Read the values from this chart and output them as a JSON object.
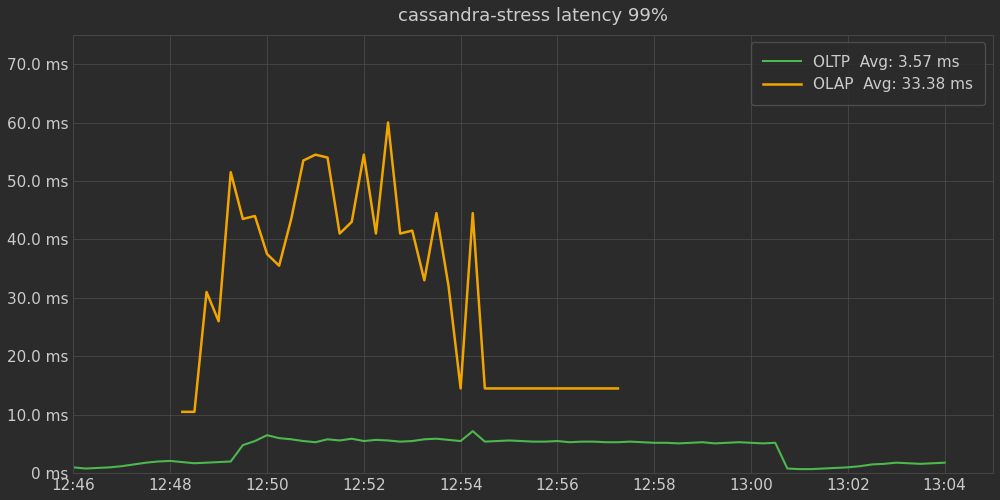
{
  "title": "cassandra-stress latency 99%",
  "background_color": "#2b2b2b",
  "plot_bg_color": "#2b2b2b",
  "grid_color": "#555555",
  "text_color": "#cccccc",
  "title_color": "#cccccc",
  "oltp_color": "#4db84d",
  "olap_color": "#f0a500",
  "oltp_label": "OLTP  Avg: 3.57 ms",
  "olap_label": "OLAP  Avg: 33.38 ms",
  "ylim": [
    0,
    75
  ],
  "yticks": [
    0,
    10.0,
    20.0,
    30.0,
    40.0,
    50.0,
    60.0,
    70.0
  ],
  "ytick_labels": [
    "0 ms",
    "10.0 ms",
    "20.0 ms",
    "30.0 ms",
    "40.0 ms",
    "50.0 ms",
    "60.0 ms",
    "70.0 ms"
  ],
  "xtick_labels": [
    "12:46",
    "12:48",
    "12:50",
    "12:52",
    "12:54",
    "12:56",
    "12:58",
    "13:00",
    "13:02",
    "13:04"
  ],
  "oltp_times_min": [
    0,
    0.5,
    1,
    1.5,
    2,
    2.5,
    3,
    3.5,
    4,
    4.5,
    5,
    5.5,
    6,
    6.5,
    7,
    7.5,
    8,
    8.5,
    9,
    9.5,
    10,
    10.5,
    11,
    11.5,
    12,
    12.5,
    13,
    13.5,
    14,
    14.5,
    15,
    15.5,
    16,
    16.5,
    17,
    17.5,
    18,
    18.5,
    19,
    19.5,
    20,
    20.5,
    21,
    21.5,
    22,
    22.5,
    23,
    23.5,
    24,
    24.5,
    25,
    25.5,
    26,
    26.5,
    27,
    27.5,
    28,
    28.5,
    29,
    29.5,
    30,
    30.5,
    31,
    31.5,
    32,
    32.5,
    33,
    33.5,
    34,
    34.5,
    35,
    35.5,
    36
  ],
  "oltp_y": [
    1.0,
    0.8,
    0.9,
    1.0,
    1.2,
    1.5,
    1.8,
    2.0,
    2.1,
    1.9,
    1.7,
    1.8,
    1.9,
    2.0,
    4.8,
    5.5,
    6.5,
    6.0,
    5.8,
    5.5,
    5.3,
    5.8,
    5.6,
    5.9,
    5.5,
    5.7,
    5.6,
    5.4,
    5.5,
    5.8,
    5.9,
    5.7,
    5.5,
    7.2,
    5.4,
    5.5,
    5.6,
    5.5,
    5.4,
    5.4,
    5.5,
    5.3,
    5.4,
    5.4,
    5.3,
    5.3,
    5.4,
    5.3,
    5.2,
    5.2,
    5.1,
    5.2,
    5.3,
    5.1,
    5.2,
    5.3,
    5.2,
    5.1,
    5.2,
    0.8,
    0.7,
    0.7,
    0.8,
    0.9,
    1.0,
    1.2,
    1.5,
    1.6,
    1.8,
    1.7,
    1.6,
    1.7,
    1.8
  ],
  "olap_times_min": [
    4.5,
    5.0,
    5.5,
    6.0,
    6.5,
    7.0,
    7.5,
    8.0,
    8.5,
    9.0,
    9.5,
    10.0,
    10.5,
    11.0,
    11.5,
    12.0,
    12.5,
    13.0,
    13.5,
    14.0,
    14.5,
    15.0,
    15.5,
    16.0,
    16.5,
    17.0,
    17.5,
    18.0,
    18.5,
    19.0,
    19.5,
    20.0,
    20.5,
    21.0,
    21.5,
    22.0,
    22.5
  ],
  "olap_y": [
    10.5,
    10.5,
    31.0,
    26.0,
    51.5,
    43.5,
    44.0,
    37.5,
    35.5,
    43.5,
    53.5,
    54.5,
    54.0,
    41.0,
    43.0,
    54.5,
    41.0,
    60.0,
    41.0,
    41.5,
    33.0,
    44.5,
    32.0,
    14.5,
    44.5,
    14.5,
    14.5,
    14.5,
    14.5,
    14.5,
    14.5,
    14.5,
    14.5,
    14.5,
    14.5,
    14.5,
    14.5
  ],
  "x_start_min": 0,
  "x_end_min": 38,
  "xtick_times_min": [
    0,
    4,
    8,
    12,
    16,
    20,
    24,
    28,
    32,
    36
  ]
}
